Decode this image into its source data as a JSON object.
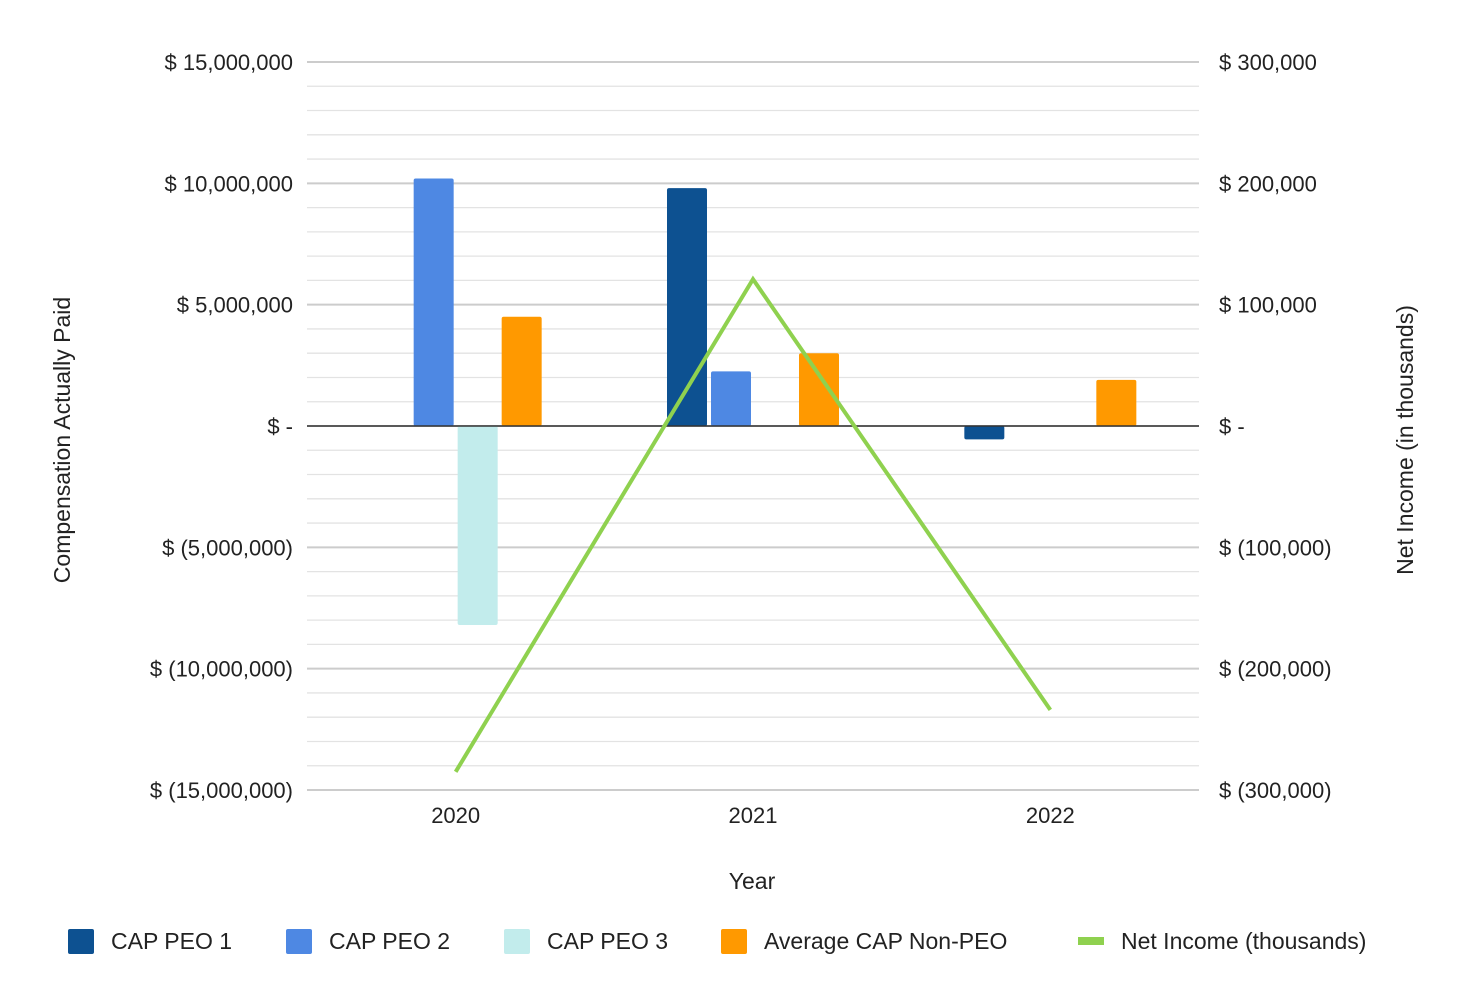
{
  "chart_data": {
    "type": "bar",
    "categories": [
      "2020",
      "2021",
      "2022"
    ],
    "series": [
      {
        "name": "CAP PEO 1",
        "axis": "left",
        "kind": "bar",
        "color": "#0d5191",
        "values": [
          null,
          9800000,
          -550000
        ]
      },
      {
        "name": "CAP PEO 2",
        "axis": "left",
        "kind": "bar",
        "color": "#4e88e3",
        "values": [
          10200000,
          2250000,
          null
        ]
      },
      {
        "name": "CAP PEO 3",
        "axis": "left",
        "kind": "bar",
        "color": "#c2ecec",
        "values": [
          -8200000,
          null,
          null
        ]
      },
      {
        "name": "Average CAP Non-PEO",
        "axis": "left",
        "kind": "bar",
        "color": "#ff9900",
        "values": [
          4500000,
          3000000,
          1900000
        ]
      },
      {
        "name": "Net Income (thousands)",
        "axis": "right",
        "kind": "line",
        "color": "#8fd14f",
        "values": [
          -285000,
          121000,
          -234000
        ]
      }
    ],
    "xlabel": "Year",
    "ylabel": "Compensation Actually Paid",
    "y2label": "Net Income (in thousands)",
    "ylim": [
      -15000000,
      15000000
    ],
    "y2lim": [
      -300000,
      300000
    ],
    "y_ticks": [
      {
        "value": 15000000,
        "label": "$ 15,000,000"
      },
      {
        "value": 10000000,
        "label": "$ 10,000,000"
      },
      {
        "value": 5000000,
        "label": "$ 5,000,000"
      },
      {
        "value": 0,
        "label": "$ -"
      },
      {
        "value": -5000000,
        "label": "$ (5,000,000)"
      },
      {
        "value": -10000000,
        "label": "$ (10,000,000)"
      },
      {
        "value": -15000000,
        "label": "$ (15,000,000)"
      }
    ],
    "y2_ticks": [
      {
        "value": 300000,
        "label": "$ 300,000"
      },
      {
        "value": 200000,
        "label": "$ 200,000"
      },
      {
        "value": 100000,
        "label": "$ 100,000"
      },
      {
        "value": 0,
        "label": "$ -"
      },
      {
        "value": -100000,
        "label": "$ (100,000)"
      },
      {
        "value": -200000,
        "label": "$ (200,000)"
      },
      {
        "value": -300000,
        "label": "$ (300,000)"
      }
    ],
    "minor_gridlines_per_major": 5,
    "grid": true,
    "legend_position": "bottom"
  }
}
